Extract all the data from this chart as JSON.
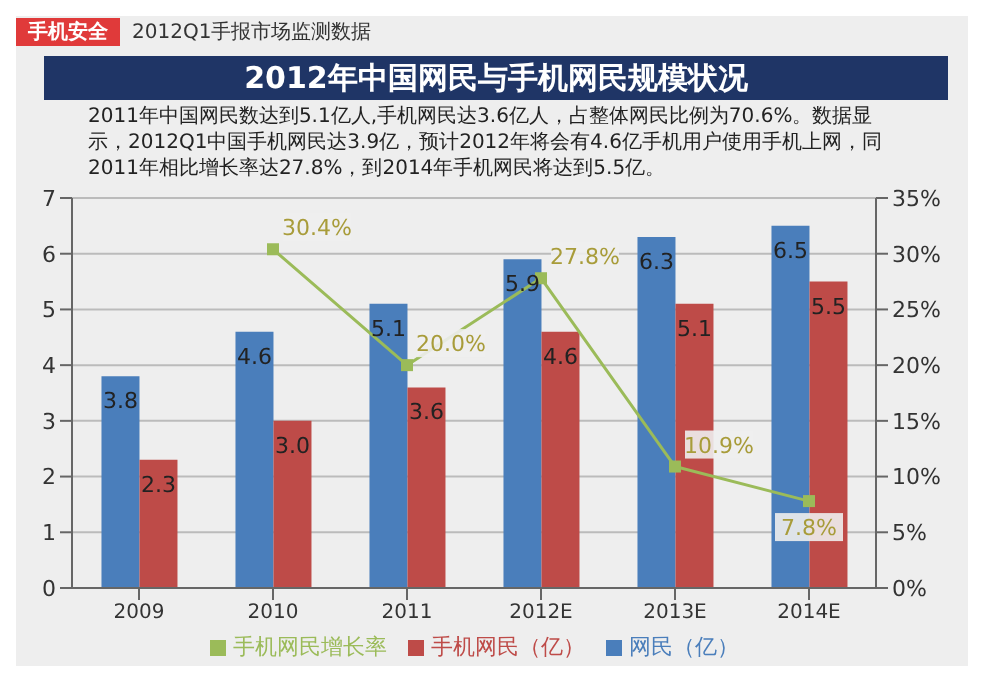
{
  "chart_data": {
    "type": "bar",
    "title": "2012年中国网民与手机网民规模状况",
    "subtitle": "2011年中国网民数达到5.1亿人,手机网民达3.6亿人，占整体网民比例为70.6%。数据显示，2012Q1中国手机网民达3.9亿，预计2012年将会有4.6亿手机用户使用手机上网，同2011年相比增长率达27.8%，到2014年手机网民将达到5.5亿。",
    "annotations": [
      "手机安全",
      "2012Q1手报市场监测数据"
    ],
    "categories": [
      "2009",
      "2010",
      "2011",
      "2012E",
      "2013E",
      "2014E"
    ],
    "series": [
      {
        "name": "网民（亿）",
        "color": "#4a7ebb",
        "values": [
          3.8,
          4.6,
          5.1,
          5.9,
          6.3,
          6.5
        ],
        "value_labels": [
          "3.8",
          "4.6",
          "5.1",
          "5.9",
          "6.3",
          "6.5"
        ]
      },
      {
        "name": "手机网民（亿）",
        "color": "#be4b48",
        "values": [
          2.3,
          3.0,
          3.6,
          4.6,
          5.1,
          5.5
        ],
        "value_labels": [
          "2.3",
          "3.0",
          "3.6",
          "4.6",
          "5.1",
          "5.5"
        ]
      },
      {
        "name": "手机网民增长率",
        "type": "line",
        "axis": "y2",
        "color": "#9bbb59",
        "marker": "square",
        "values": [
          null,
          30.4,
          20.0,
          27.8,
          10.9,
          7.8
        ],
        "value_labels": [
          null,
          "30.4%",
          "20.0%",
          "27.8%",
          "10.9%",
          "7.8%"
        ]
      }
    ],
    "ylim": [
      0,
      7
    ],
    "yticks": [
      0,
      1,
      2,
      3,
      4,
      5,
      6,
      7
    ],
    "y2lim": [
      0,
      35
    ],
    "y2ticks": [
      {
        "value": 0,
        "label": "0%"
      },
      {
        "value": 5,
        "label": "5%"
      },
      {
        "value": 10,
        "label": "10%"
      },
      {
        "value": 15,
        "label": "15%"
      },
      {
        "value": 20,
        "label": "20%"
      },
      {
        "value": 25,
        "label": "25%"
      },
      {
        "value": 30,
        "label": "30%"
      },
      {
        "value": 35,
        "label": "35%"
      }
    ],
    "grid": "y",
    "legend": "bottom"
  }
}
